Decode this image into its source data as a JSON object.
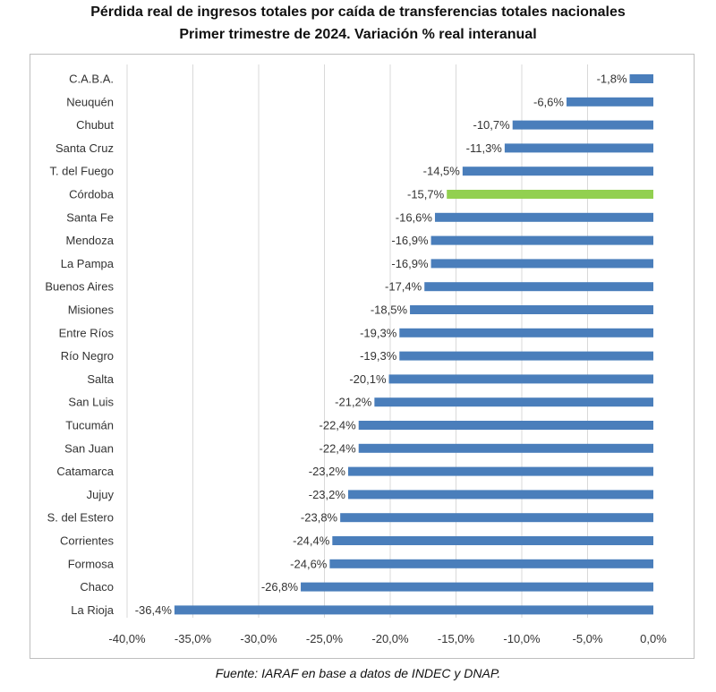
{
  "title": "Pérdida real de ingresos totales por caída de transferencias totales nacionales",
  "subtitle": "Primer trimestre de 2024. Variación % real interanual",
  "source": "Fuente: IARAF en base a datos de INDEC y DNAP.",
  "chart_data": {
    "type": "bar",
    "orientation": "horizontal",
    "categories": [
      "C.A.B.A.",
      "Neuquén",
      "Chubut",
      "Santa Cruz",
      "T. del Fuego",
      "Córdoba",
      "Santa Fe",
      "Mendoza",
      "La Pampa",
      "Buenos Aires",
      "Misiones",
      "Entre Ríos",
      "Río Negro",
      "Salta",
      "San Luis",
      "Tucumán",
      "San Juan",
      "Catamarca",
      "Jujuy",
      "S. del Estero",
      "Corrientes",
      "Formosa",
      "Chaco",
      "La Rioja"
    ],
    "values": [
      -1.8,
      -6.6,
      -10.7,
      -11.3,
      -14.5,
      -15.7,
      -16.6,
      -16.9,
      -16.9,
      -17.4,
      -18.5,
      -19.3,
      -19.3,
      -20.1,
      -21.2,
      -22.4,
      -22.4,
      -23.2,
      -23.2,
      -23.8,
      -24.4,
      -24.6,
      -26.8,
      -36.4
    ],
    "data_labels": [
      "-1,8%",
      "-6,6%",
      "-10,7%",
      "-11,3%",
      "-14,5%",
      "-15,7%",
      "-16,6%",
      "-16,9%",
      "-16,9%",
      "-17,4%",
      "-18,5%",
      "-19,3%",
      "-19,3%",
      "-20,1%",
      "-21,2%",
      "-22,4%",
      "-22,4%",
      "-23,2%",
      "-23,2%",
      "-23,8%",
      "-24,4%",
      "-24,6%",
      "-26,8%",
      "-36,4%"
    ],
    "xlim": [
      -40,
      0
    ],
    "xticks": [
      -40,
      -35,
      -30,
      -25,
      -20,
      -15,
      -10,
      -5,
      0
    ],
    "xtick_labels": [
      "-40,0%",
      "-35,0%",
      "-30,0%",
      "-25,0%",
      "-20,0%",
      "-15,0%",
      "-10,0%",
      "-5,0%",
      "0,0%"
    ],
    "grid": "vertical",
    "legend": "none",
    "bar_color": "#4a7ebb",
    "highlight_category": "Córdoba",
    "highlight_color": "#92d050"
  }
}
